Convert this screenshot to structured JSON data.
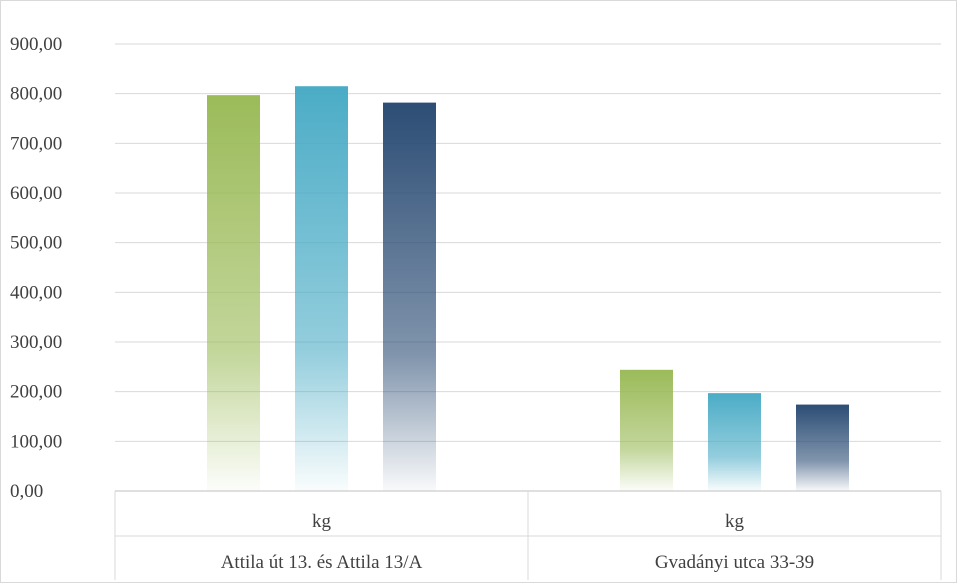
{
  "chart_data": {
    "type": "bar",
    "title": "",
    "xlabel": "",
    "ylabel": "",
    "ylim": [
      0,
      900
    ],
    "y_ticks": [
      "0,00",
      "100,00",
      "200,00",
      "300,00",
      "400,00",
      "500,00",
      "600,00",
      "700,00",
      "800,00",
      "900,00"
    ],
    "grid": true,
    "legend": "none",
    "categories": [
      {
        "unit": "kg",
        "label": "Attila út 13. és Attila 13/A"
      },
      {
        "unit": "kg",
        "label": "Gvadányi utca 33-39"
      }
    ],
    "series": [
      {
        "color": "#9bbb59",
        "values": [
          797,
          244
        ]
      },
      {
        "color": "#4bacc6",
        "values": [
          815,
          197
        ]
      },
      {
        "color": "#2c4d75",
        "values": [
          782,
          174
        ]
      }
    ]
  }
}
